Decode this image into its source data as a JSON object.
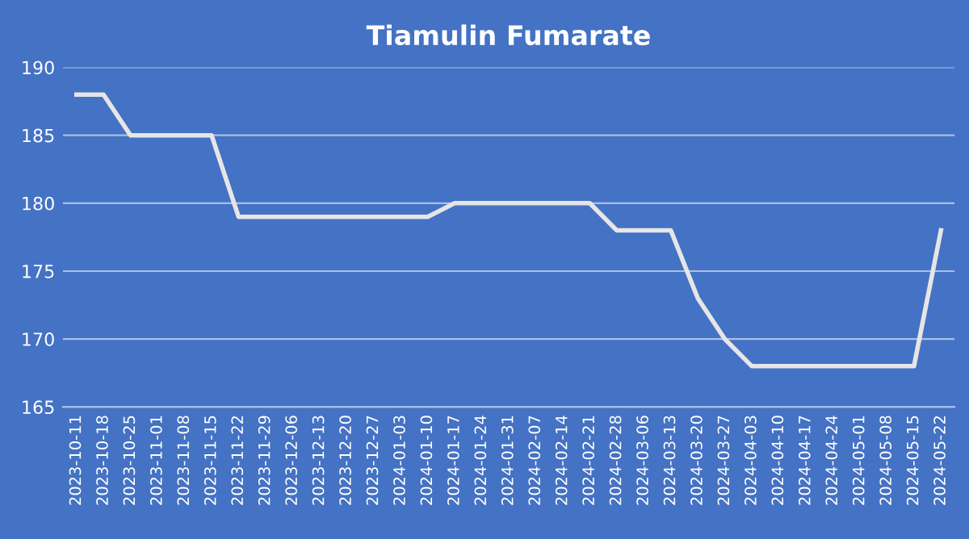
{
  "chart_data": {
    "type": "line",
    "title": "Tiamulin Fumarate",
    "categories": [
      "2023-10-11",
      "2023-10-18",
      "2023-10-25",
      "2023-11-01",
      "2023-11-08",
      "2023-11-15",
      "2023-11-22",
      "2023-11-29",
      "2023-12-06",
      "2023-12-13",
      "2023-12-20",
      "2023-12-27",
      "2024-01-03",
      "2024-01-10",
      "2024-01-17",
      "2024-01-24",
      "2024-01-31",
      "2024-02-07",
      "2024-02-14",
      "2024-02-21",
      "2024-02-28",
      "2024-03-06",
      "2024-03-13",
      "2024-03-20",
      "2024-03-27",
      "2024-04-03",
      "2024-04-10",
      "2024-04-17",
      "2024-04-24",
      "2024-05-01",
      "2024-05-08",
      "2024-05-15",
      "2024-05-22"
    ],
    "series": [
      {
        "color": "#e6e6e6",
        "values": [
          188,
          188,
          185,
          185,
          185,
          185,
          179,
          179,
          179,
          179,
          179,
          179,
          179,
          179,
          180,
          180,
          180,
          180,
          180,
          180,
          178,
          178,
          178,
          173,
          170,
          168,
          168,
          168,
          168,
          168,
          168,
          168,
          178
        ]
      }
    ],
    "ylim": [
      165,
      190
    ],
    "yticks": [
      165,
      170,
      175,
      180,
      185,
      190
    ],
    "grid": "y",
    "legend": false,
    "marker": "none",
    "line_style": "solid"
  }
}
